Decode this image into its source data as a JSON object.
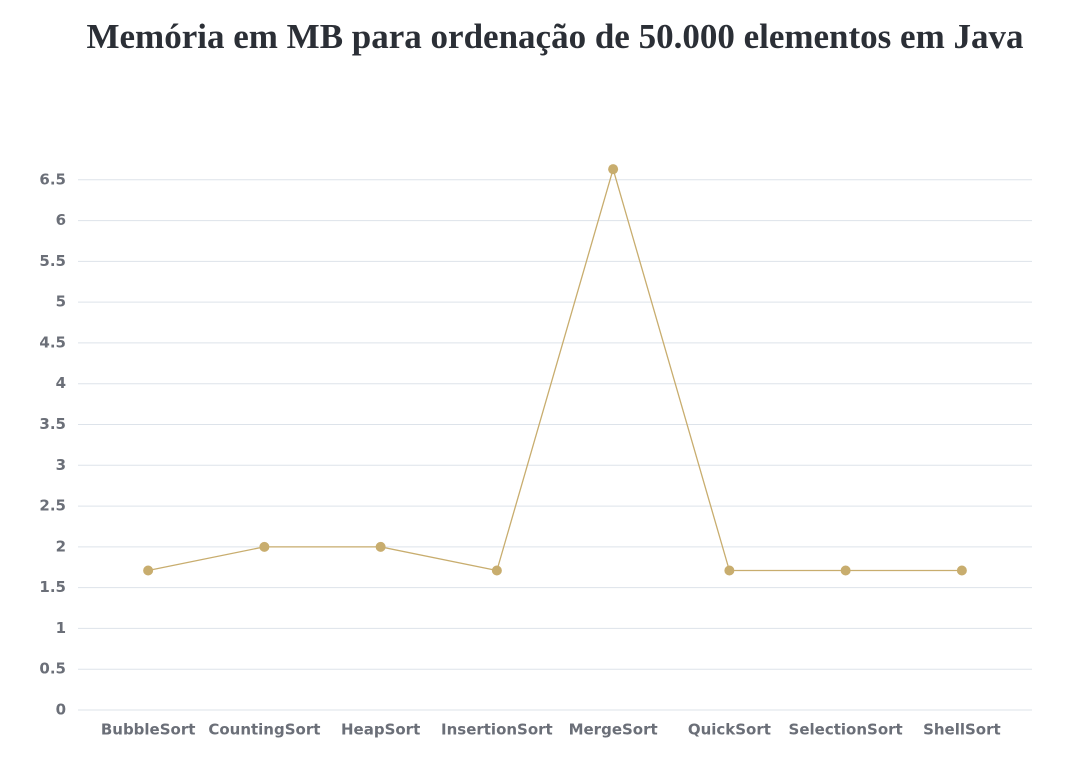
{
  "chart_data": {
    "type": "line",
    "title": "Memória em MB para ordenação de 50.000 elementos em Java",
    "categories": [
      "BubbleSort",
      "CountingSort",
      "HeapSort",
      "InsertionSort",
      "MergeSort",
      "QuickSort",
      "SelectionSort",
      "ShellSort"
    ],
    "values": [
      1.71,
      2.0,
      2.0,
      1.71,
      6.63,
      1.71,
      1.71,
      1.71
    ],
    "color": "#c8ad6e",
    "ylim": [
      0,
      7
    ],
    "yticks": [
      0,
      0.5,
      1,
      1.5,
      2,
      2.5,
      3,
      3.5,
      4,
      4.5,
      5,
      5.5,
      6,
      6.5
    ],
    "grid": true
  }
}
